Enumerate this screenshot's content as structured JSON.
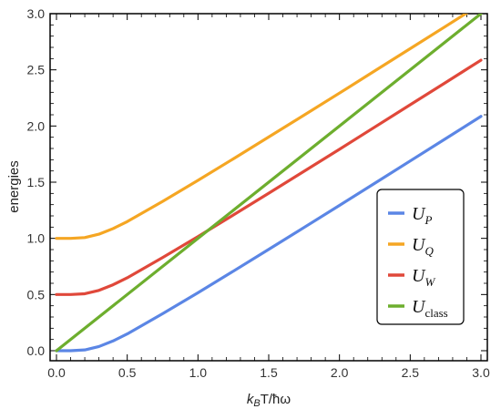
{
  "chart_data": {
    "type": "line",
    "title": "",
    "xlabel": {
      "k": "k",
      "sub": "B",
      "rest": "T/ħω"
    },
    "ylabel": "energies",
    "xlim": [
      0,
      3
    ],
    "ylim": [
      0,
      3
    ],
    "xticks": [
      "0.0",
      "0.5",
      "1.0",
      "1.5",
      "2.0",
      "2.5",
      "3.0"
    ],
    "yticks": [
      "0.0",
      "0.5",
      "1.0",
      "1.5",
      "2.0",
      "2.5",
      "3.0"
    ],
    "grid": false,
    "legend": "right",
    "series": [
      {
        "name": "U",
        "sub": "P",
        "color": "#5B86E5",
        "x": [
          0,
          0.1,
          0.2,
          0.3,
          0.4,
          0.5,
          0.75,
          1.0,
          1.25,
          1.5,
          1.75,
          2.0,
          2.25,
          2.5,
          2.75,
          3.0
        ],
        "y": [
          0,
          0.0,
          0.007,
          0.037,
          0.087,
          0.149,
          0.329,
          0.516,
          0.708,
          0.902,
          1.097,
          1.293,
          1.491,
          1.689,
          1.887,
          2.086
        ]
      },
      {
        "name": "U",
        "sub": "Q",
        "color": "#F5A623",
        "x": [
          0,
          0.1,
          0.2,
          0.3,
          0.4,
          0.5,
          0.75,
          1.0,
          1.25,
          1.5,
          1.75,
          2.0,
          2.25,
          2.5,
          2.75,
          3.0
        ],
        "y": [
          1.0,
          1.0,
          1.007,
          1.037,
          1.087,
          1.149,
          1.329,
          1.516,
          1.708,
          1.902,
          2.097,
          2.293,
          2.491,
          2.689,
          2.887,
          3.086
        ]
      },
      {
        "name": "U",
        "sub": "W",
        "color": "#E0483A",
        "x": [
          0,
          0.1,
          0.2,
          0.3,
          0.4,
          0.5,
          0.75,
          1.0,
          1.25,
          1.5,
          1.75,
          2.0,
          2.25,
          2.5,
          2.75,
          3.0
        ],
        "y": [
          0.5,
          0.5,
          0.507,
          0.537,
          0.587,
          0.649,
          0.829,
          1.016,
          1.208,
          1.402,
          1.597,
          1.793,
          1.991,
          2.189,
          2.387,
          2.586
        ]
      },
      {
        "name": "U",
        "sub": "class",
        "color": "#6DAE2E",
        "x": [
          0,
          3.0
        ],
        "y": [
          0,
          3.0
        ]
      }
    ]
  }
}
